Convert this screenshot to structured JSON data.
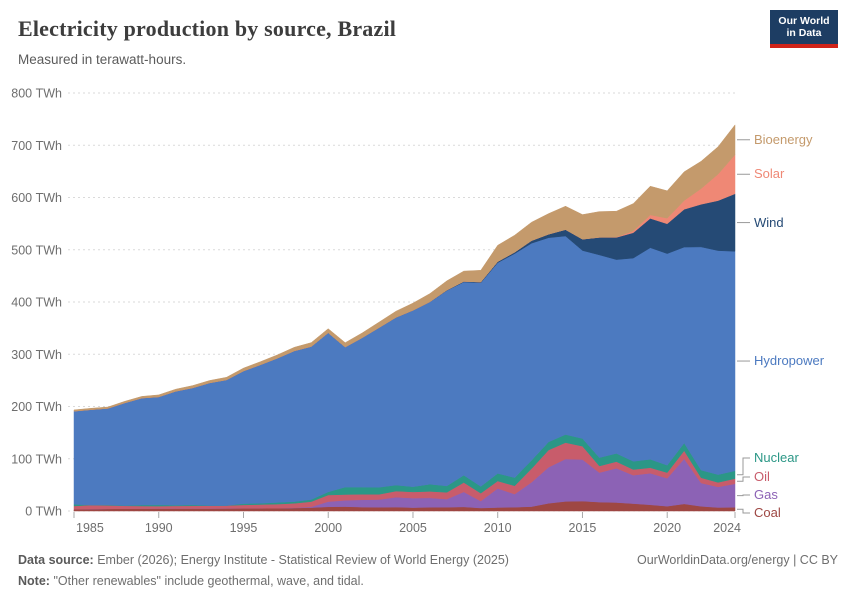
{
  "header": {
    "title": "Electricity production by source, Brazil",
    "subtitle": "Measured in terawatt-hours.",
    "logo_line1": "Our World",
    "logo_line2": "in Data",
    "logo_bg": "#1d3d63",
    "logo_underline": "#cf2319"
  },
  "chart_data": {
    "type": "area",
    "stacked": true,
    "title": "Electricity production by source, Brazil",
    "xlabel": "",
    "ylabel": "terawatt-hours",
    "ylim": [
      0,
      800
    ],
    "grid": true,
    "legend_position": "right",
    "y_ticks": [
      0,
      100,
      200,
      300,
      400,
      500,
      600,
      700,
      800
    ],
    "y_tick_unit": "TWh",
    "x_ticks": [
      1985,
      1990,
      1995,
      2000,
      2005,
      2010,
      2015,
      2020,
      2024
    ],
    "x": [
      1985,
      1986,
      1987,
      1988,
      1989,
      1990,
      1991,
      1992,
      1993,
      1994,
      1995,
      1996,
      1997,
      1998,
      1999,
      2000,
      2001,
      2002,
      2003,
      2004,
      2005,
      2006,
      2007,
      2008,
      2009,
      2010,
      2011,
      2012,
      2013,
      2014,
      2015,
      2016,
      2017,
      2018,
      2019,
      2020,
      2021,
      2022,
      2023,
      2024
    ],
    "series": [
      {
        "name": "Coal",
        "color": "#9e4743",
        "values": [
          3.5,
          3.9,
          4.2,
          4.4,
          4.6,
          4.7,
          4.8,
          4.7,
          4.8,
          5.0,
          5.1,
          5.2,
          5.4,
          5.7,
          6.5,
          8.0,
          8.5,
          7.5,
          7.0,
          7.5,
          6.6,
          7.0,
          7.2,
          7.8,
          5.8,
          6.7,
          7.3,
          8.4,
          14.8,
          18.4,
          19.0,
          17.0,
          16.3,
          14.2,
          11.9,
          9.1,
          13.6,
          8.9,
          6.7,
          7.0
        ]
      },
      {
        "name": "Gas",
        "color": "#8c62b5",
        "values": [
          0,
          0,
          0,
          0,
          0,
          0,
          0,
          0,
          0,
          0,
          0,
          0,
          0,
          0.5,
          1.5,
          10.0,
          12.0,
          14.0,
          15.0,
          19.0,
          18.0,
          18.0,
          15.5,
          28.8,
          13.2,
          36.5,
          25.0,
          46.8,
          69.0,
          81.1,
          79.5,
          56.5,
          65.6,
          54.3,
          60.4,
          53.5,
          86.3,
          44.7,
          39.4,
          45.0
        ]
      },
      {
        "name": "Oil",
        "color": "#c85c6b",
        "values": [
          6.0,
          7.5,
          6.5,
          5.5,
          5.0,
          4.7,
          5.0,
          5.2,
          5.4,
          5.6,
          6.5,
          7.2,
          7.8,
          8.5,
          10.0,
          12.6,
          11.0,
          10.5,
          10.0,
          11.5,
          12.0,
          12.5,
          13.0,
          18.0,
          15.0,
          14.2,
          16.0,
          26.0,
          33.0,
          31.5,
          25.6,
          12.7,
          12.7,
          11.0,
          10.6,
          10.9,
          15.5,
          10.1,
          8.7,
          10.0
        ]
      },
      {
        "name": "Nuclear",
        "color": "#2b9786",
        "values": [
          3.4,
          0.1,
          1.0,
          0.6,
          1.8,
          2.2,
          1.4,
          1.8,
          0.4,
          0.0,
          2.5,
          2.4,
          3.2,
          3.3,
          4.0,
          6.0,
          14.3,
          13.8,
          13.4,
          11.6,
          9.9,
          13.8,
          12.3,
          14.0,
          13.0,
          14.5,
          15.7,
          16.0,
          15.4,
          15.4,
          14.7,
          16.0,
          15.7,
          15.7,
          16.1,
          14.1,
          14.7,
          14.6,
          14.8,
          15.0
        ]
      },
      {
        "name": "Hydropower",
        "color": "#4c7ac0",
        "values": [
          178.1,
          182.4,
          184.6,
          196.4,
          204.7,
          206.7,
          217.8,
          223.9,
          234.5,
          240.3,
          253.9,
          265.1,
          276.1,
          288.5,
          292.9,
          304.4,
          267.9,
          285.6,
          305.6,
          320.8,
          337.5,
          348.8,
          374.0,
          369.6,
          390.0,
          403.3,
          428.6,
          415.3,
          390.9,
          380.0,
          359.7,
          388.0,
          370.9,
          388.9,
          405.0,
          405.0,
          375.0,
          427.1,
          428.7,
          420.0
        ]
      },
      {
        "name": "Wind",
        "color": "#254a75",
        "values": [
          0,
          0,
          0,
          0,
          0,
          0,
          0,
          0,
          0,
          0,
          0,
          0,
          0,
          0,
          0,
          0,
          0,
          0,
          0.1,
          0.1,
          0.1,
          0.2,
          0.7,
          1.2,
          1.2,
          2.2,
          2.7,
          5.1,
          6.6,
          12.2,
          21.6,
          33.5,
          42.4,
          48.5,
          56.0,
          57.1,
          72.3,
          81.6,
          95.8,
          110.0
        ]
      },
      {
        "name": "Solar",
        "color": "#ef8875",
        "values": [
          0,
          0,
          0,
          0,
          0,
          0,
          0,
          0,
          0,
          0,
          0,
          0,
          0,
          0,
          0,
          0,
          0,
          0,
          0,
          0,
          0,
          0,
          0,
          0,
          0,
          0,
          0,
          0,
          0,
          0,
          0.1,
          0.1,
          0.8,
          3.5,
          6.7,
          10.7,
          16.8,
          30.1,
          50.6,
          75.0
        ]
      },
      {
        "name": "Bioenergy",
        "color": "#c49a6c",
        "values": [
          2.4,
          2.6,
          2.8,
          3.0,
          3.3,
          3.9,
          4.1,
          4.4,
          4.7,
          5.0,
          5.4,
          5.8,
          6.2,
          6.8,
          7.4,
          7.9,
          8.5,
          9.2,
          10.5,
          11.8,
          13.7,
          15.8,
          17.9,
          19.8,
          22.5,
          31.2,
          32.5,
          35.2,
          39.5,
          44.7,
          47.0,
          49.2,
          49.4,
          52.2,
          55.0,
          52.5,
          54.9,
          52.2,
          52.6,
          57.0
        ]
      }
    ]
  },
  "footer": {
    "data_source_label": "Data source:",
    "data_source": "Ember (2026); Energy Institute - Statistical Review of World Energy (2025)",
    "note_label": "Note:",
    "note": "\"Other renewables\" include geothermal, wave, and tidal.",
    "link": "OurWorldinData.org/energy | CC BY"
  }
}
